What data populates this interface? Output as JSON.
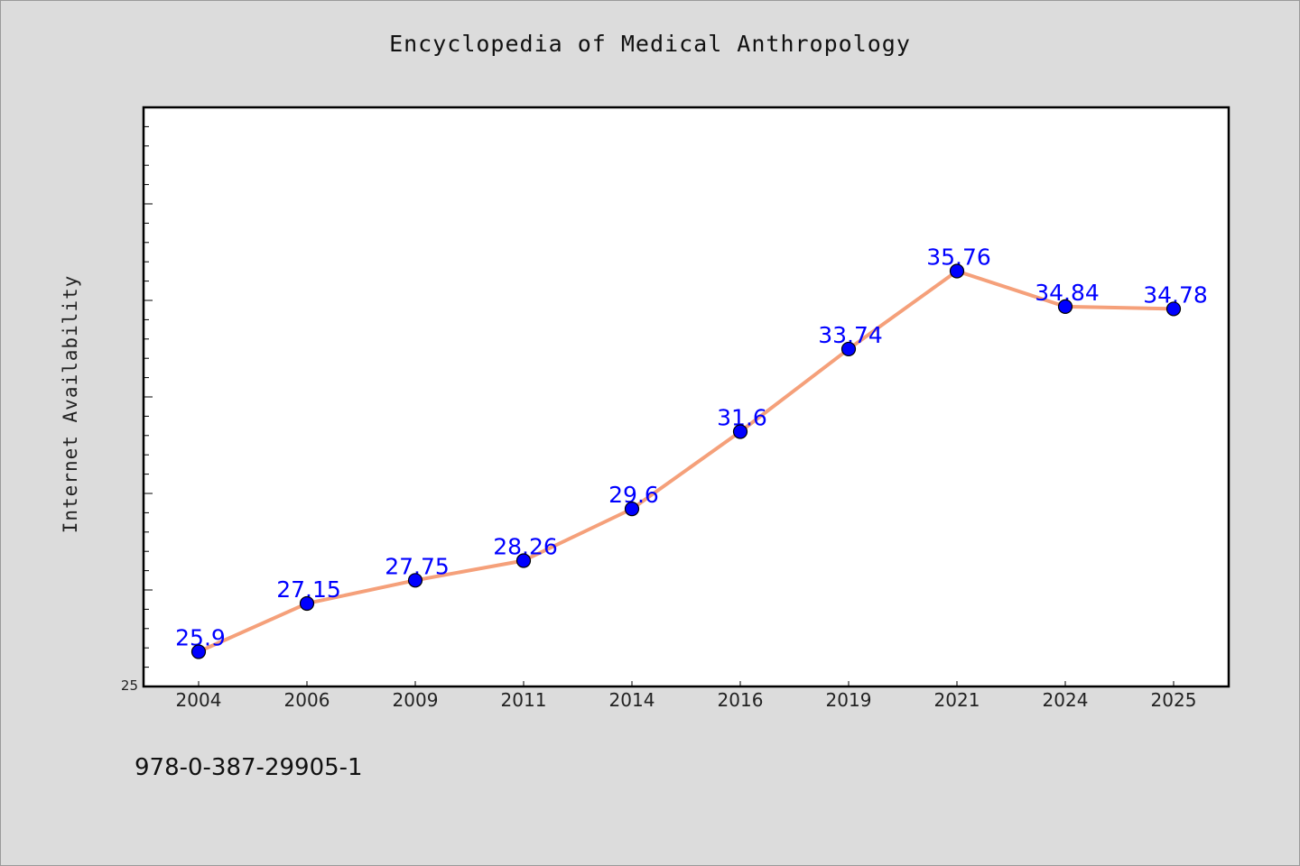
{
  "title": "Encyclopedia of Medical Anthropology",
  "footer_text": "978-0-387-29905-1",
  "colors": {
    "background": "#dcdcdc",
    "plot_background": "#ffffff",
    "line": "#f5a07a",
    "marker": "#0000ff",
    "data_label": "#0000ff"
  },
  "chart_data": {
    "type": "line",
    "title": "Encyclopedia of Medical Anthropology",
    "xlabel": "",
    "ylabel": "Internet Availability",
    "categories": [
      "2004",
      "2006",
      "2009",
      "2011",
      "2014",
      "2016",
      "2019",
      "2021",
      "2024",
      "2025"
    ],
    "series": [
      {
        "values": [
          25.9,
          27.15,
          27.75,
          28.26,
          29.6,
          31.6,
          33.74,
          35.76,
          34.84,
          34.78
        ]
      }
    ],
    "data_labels": [
      "25.9",
      "27.15",
      "27.75",
      "28.26",
      "29.6",
      "31.6",
      "33.74",
      "35.76",
      "34.84",
      "34.78"
    ],
    "ylim": [
      25,
      40
    ],
    "y_tick_labels": [
      "25"
    ],
    "grid": false,
    "legend": "none"
  }
}
